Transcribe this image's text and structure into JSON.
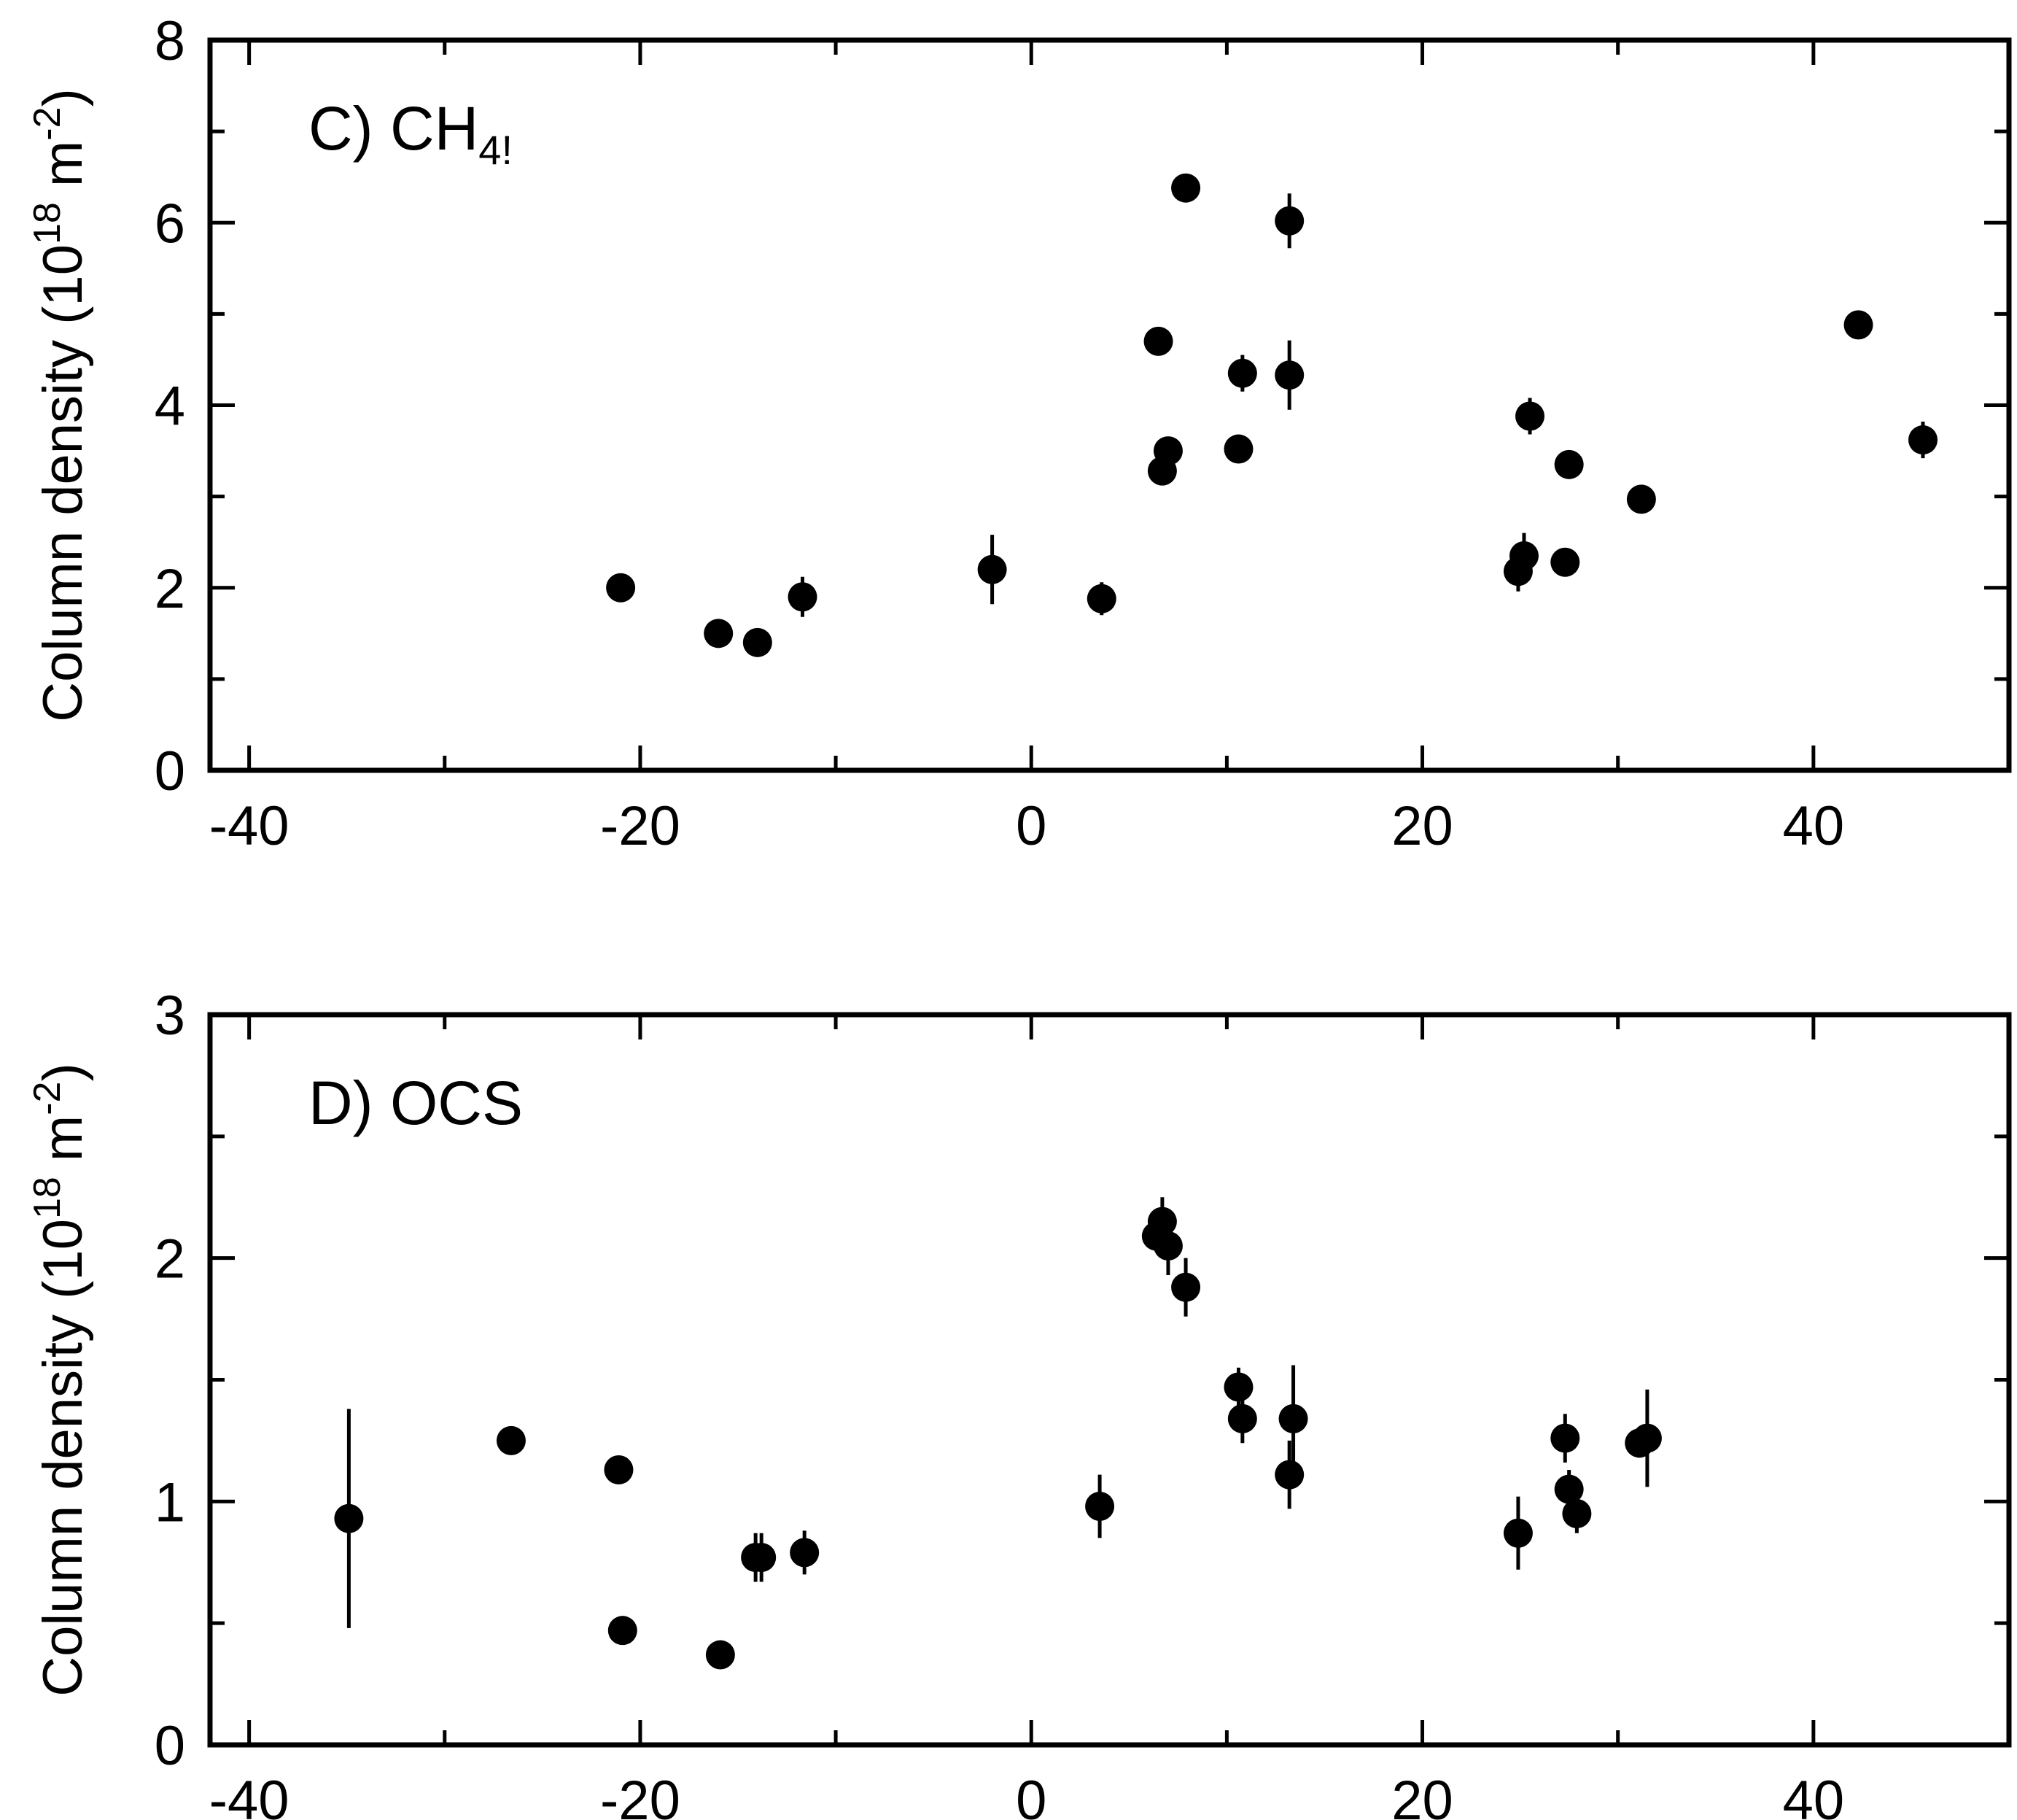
{
  "chart_data": [
    {
      "type": "scatter",
      "panel_label": "C) CH",
      "panel_label_sub": "4!",
      "ylabel_main": "Column density (10",
      "ylabel_exp": "18",
      "ylabel_unit": " m",
      "ylabel_unit_exp": "-2",
      "ylabel_close": ")",
      "xlim": [
        -42,
        50
      ],
      "ylim": [
        0,
        8
      ],
      "x_ticks": [
        -40,
        -20,
        0,
        20,
        40
      ],
      "x_tick_labels": [
        "-40",
        "-20",
        "0",
        "20",
        "40"
      ],
      "y_ticks": [
        0,
        2,
        4,
        6,
        8
      ],
      "y_tick_labels": [
        "0",
        "2",
        "4",
        "6",
        "8"
      ],
      "points": [
        {
          "x": -21,
          "y": 2.0,
          "err": 0.05
        },
        {
          "x": -16,
          "y": 1.5,
          "err": 0.05
        },
        {
          "x": -14,
          "y": 1.4,
          "err": 0.05
        },
        {
          "x": -11.7,
          "y": 1.9,
          "err": 0.22
        },
        {
          "x": -2,
          "y": 2.2,
          "err": 0.38
        },
        {
          "x": 3.6,
          "y": 1.88,
          "err": 0.18
        },
        {
          "x": 6.5,
          "y": 4.7,
          "err": 0.05
        },
        {
          "x": 6.7,
          "y": 3.28,
          "err": 0.05
        },
        {
          "x": 7.0,
          "y": 3.5,
          "err": 0.05
        },
        {
          "x": 7.9,
          "y": 6.38,
          "err": 0.05
        },
        {
          "x": 10.6,
          "y": 3.52,
          "err": 0.05
        },
        {
          "x": 10.8,
          "y": 4.35,
          "err": 0.2
        },
        {
          "x": 13.2,
          "y": 4.33,
          "err": 0.38
        },
        {
          "x": 13.2,
          "y": 6.02,
          "err": 0.3
        },
        {
          "x": 24.9,
          "y": 2.18,
          "err": 0.22
        },
        {
          "x": 25.2,
          "y": 2.35,
          "err": 0.25
        },
        {
          "x": 25.5,
          "y": 3.88,
          "err": 0.2
        },
        {
          "x": 27.3,
          "y": 2.28,
          "err": 0.05
        },
        {
          "x": 27.5,
          "y": 3.35,
          "err": 0.05
        },
        {
          "x": 31.2,
          "y": 2.97,
          "err": 0.05
        },
        {
          "x": 42.3,
          "y": 4.88,
          "err": 0.05
        },
        {
          "x": 45.6,
          "y": 3.62,
          "err": 0.2
        }
      ]
    },
    {
      "type": "scatter",
      "panel_label": "D) OCS",
      "panel_label_sub": "",
      "ylabel_main": "Column density (10",
      "ylabel_exp": "18",
      "ylabel_unit": " m",
      "ylabel_unit_exp": "-2",
      "ylabel_close": ")",
      "xlim": [
        -42,
        50
      ],
      "ylim": [
        0,
        3
      ],
      "x_ticks": [
        -40,
        -20,
        0,
        20,
        40
      ],
      "x_tick_labels": [
        "-40",
        "-20",
        "0",
        "20",
        "40"
      ],
      "y_ticks": [
        0,
        1,
        2,
        3
      ],
      "y_tick_labels": [
        "0",
        "1",
        "2",
        "3"
      ],
      "points": [
        {
          "x": -34.9,
          "y": 0.93,
          "err": 0.45
        },
        {
          "x": -26.6,
          "y": 1.25,
          "err": 0.02
        },
        {
          "x": -21.1,
          "y": 1.13,
          "err": 0.02
        },
        {
          "x": -20.9,
          "y": 0.47,
          "err": 0.02
        },
        {
          "x": -15.9,
          "y": 0.37,
          "err": 0.02
        },
        {
          "x": -14.1,
          "y": 0.77,
          "err": 0.1
        },
        {
          "x": -13.8,
          "y": 0.77,
          "err": 0.1
        },
        {
          "x": -11.6,
          "y": 0.79,
          "err": 0.09
        },
        {
          "x": 3.5,
          "y": 0.98,
          "err": 0.13
        },
        {
          "x": 6.4,
          "y": 2.09,
          "err": 0.05
        },
        {
          "x": 6.7,
          "y": 2.15,
          "err": 0.1
        },
        {
          "x": 7.0,
          "y": 2.05,
          "err": 0.12
        },
        {
          "x": 7.9,
          "y": 1.88,
          "err": 0.12
        },
        {
          "x": 10.6,
          "y": 1.47,
          "err": 0.08
        },
        {
          "x": 10.8,
          "y": 1.34,
          "err": 0.1
        },
        {
          "x": 13.4,
          "y": 1.34,
          "err": 0.22
        },
        {
          "x": 13.2,
          "y": 1.11,
          "err": 0.14
        },
        {
          "x": 24.9,
          "y": 0.87,
          "err": 0.15
        },
        {
          "x": 27.3,
          "y": 1.26,
          "err": 0.1
        },
        {
          "x": 27.5,
          "y": 1.05,
          "err": 0.08
        },
        {
          "x": 27.9,
          "y": 0.95,
          "err": 0.08
        },
        {
          "x": 31.1,
          "y": 1.24,
          "err": 0.06
        },
        {
          "x": 31.5,
          "y": 1.26,
          "err": 0.2
        }
      ]
    }
  ]
}
